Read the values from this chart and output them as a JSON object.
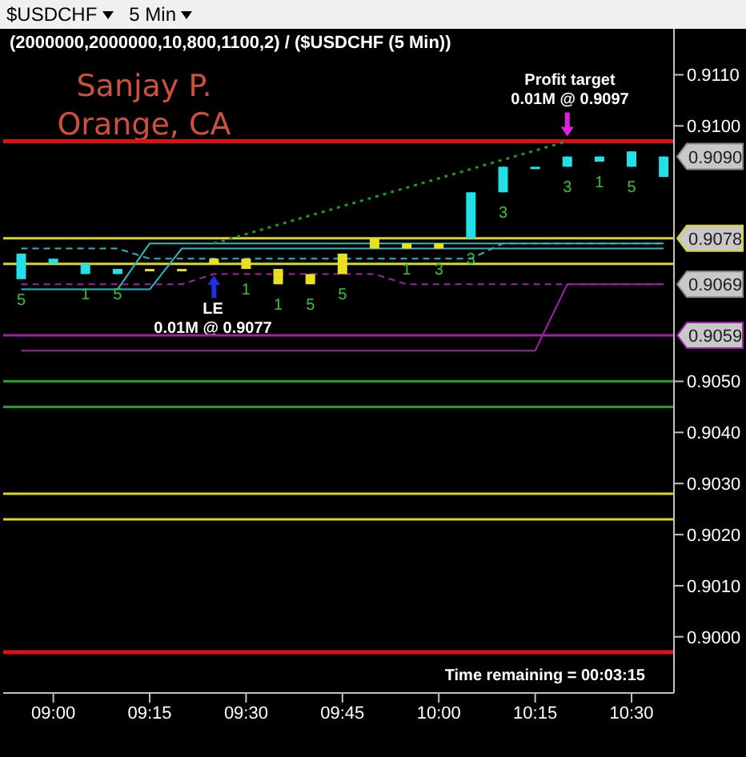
{
  "chart_data": {
    "type": "candlestick",
    "title": "(2000000,2000000,10,800,1100,2) / ($USDCHF (5 Min))",
    "x": [
      8.9167,
      9,
      9.0833,
      9.1667,
      9.25,
      9.3333,
      9.4167,
      9.5,
      9.5833,
      9.6667,
      9.75,
      9.8333,
      9.9167,
      10,
      10.0833,
      10.1667,
      10.25,
      10.3333,
      10.4167,
      10.5,
      10.5833
    ],
    "ohlc": [
      [
        0.907,
        0.9075,
        0.907,
        0.9075
      ],
      [
        0.9073,
        0.9074,
        0.9073,
        0.9074
      ],
      [
        0.9071,
        0.9073,
        0.9071,
        0.9073
      ],
      [
        0.9071,
        0.9072,
        0.9071,
        0.9072
      ],
      [
        0.9072,
        0.9072,
        0.9072,
        0.9072
      ],
      [
        0.9072,
        0.9072,
        0.9072,
        0.9072
      ],
      [
        0.9074,
        0.9074,
        0.9073,
        0.9073
      ],
      [
        0.9074,
        0.9074,
        0.9072,
        0.9072
      ],
      [
        0.9072,
        0.9072,
        0.9069,
        0.9069
      ],
      [
        0.9071,
        0.9071,
        0.9069,
        0.9069
      ],
      [
        0.9075,
        0.9075,
        0.9071,
        0.9071
      ],
      [
        0.9078,
        0.9078,
        0.9076,
        0.9076
      ],
      [
        0.9077,
        0.9077,
        0.9076,
        0.9076
      ],
      [
        0.9077,
        0.9077,
        0.9076,
        0.9076
      ],
      [
        0.9078,
        0.9087,
        0.9078,
        0.9087
      ],
      [
        0.9087,
        0.9092,
        0.9087,
        0.9092
      ],
      [
        0.9092,
        0.9092,
        0.9092,
        0.9092
      ],
      [
        0.9092,
        0.9094,
        0.9092,
        0.9094
      ],
      [
        0.9093,
        0.9094,
        0.9093,
        0.9094
      ],
      [
        0.9092,
        0.9095,
        0.9092,
        0.9095
      ],
      [
        0.909,
        0.9094,
        0.909,
        0.9094
      ]
    ],
    "colors": [
      "#22e0e8",
      "#22e0e8",
      "#22e0e8",
      "#22e0e8",
      "#e8e020",
      "#e8e020",
      "#e8e020",
      "#e8e020",
      "#e8e020",
      "#e8e020",
      "#e8e020",
      "#e8e020",
      "#e8e020",
      "#e8e020",
      "#22e0e8",
      "#22e0e8",
      "#22e0e8",
      "#22e0e8",
      "#22e0e8",
      "#22e0e8",
      "#22e0e8"
    ],
    "series": [
      {
        "type": "line",
        "color": "#2ab8c0",
        "line_style": "solid",
        "x": [
          8.9167,
          9.1667,
          9.25,
          10.5833
        ],
        "values": [
          0.9068,
          0.9068,
          0.9077,
          0.9077
        ]
      },
      {
        "type": "line",
        "color": "#2ab8c0",
        "line_style": "solid",
        "x": [
          9.1667,
          9.25,
          9.3333,
          10.5833
        ],
        "values": [
          0.9068,
          0.9068,
          0.9076,
          0.9076
        ]
      },
      {
        "type": "line",
        "color": "#2ab8c0",
        "line_style": "dashed",
        "x": [
          8.9167,
          9.1667,
          9.25,
          10.0833,
          10.1667,
          10.5833
        ],
        "values": [
          0.9076,
          0.9076,
          0.9074,
          0.9074,
          0.9077,
          0.9077
        ]
      },
      {
        "type": "line",
        "color": "#a020a8",
        "line_style": "dashed",
        "x": [
          8.9167,
          9.3333,
          9.4167,
          9.8333,
          9.9167,
          10.5833
        ],
        "values": [
          0.9069,
          0.9069,
          0.9071,
          0.9071,
          0.9069,
          0.9069
        ]
      },
      {
        "type": "line",
        "color": "#a020a8",
        "line_style": "solid",
        "x": [
          8.9167,
          10.25,
          10.3333,
          10.5833
        ],
        "values": [
          0.9056,
          0.9056,
          0.9069,
          0.9069
        ]
      },
      {
        "type": "line",
        "color": "#1e9a1e",
        "line_style": "dotted",
        "x": [
          9.4167,
          10.3333
        ],
        "values": [
          0.9077,
          0.9097
        ]
      }
    ],
    "ref_lines": [
      {
        "axis": "y",
        "value": 0.9097,
        "color": "#e01010"
      },
      {
        "axis": "y",
        "value": 0.9078,
        "color": "#d8d820",
        "label": "0.9078"
      },
      {
        "axis": "y",
        "value": 0.9073,
        "color": "#d8d820"
      },
      {
        "axis": "y",
        "value": 0.9059,
        "color": "#a020a8",
        "label": "0.9059"
      },
      {
        "axis": "y",
        "value": 0.905,
        "color": "#1ea01e"
      },
      {
        "axis": "y",
        "value": 0.9045,
        "color": "#1ea01e"
      },
      {
        "axis": "y",
        "value": 0.9028,
        "color": "#d8d820"
      },
      {
        "axis": "y",
        "value": 0.9023,
        "color": "#d8d820"
      },
      {
        "axis": "y",
        "value": 0.8997,
        "color": "#e01010"
      }
    ],
    "annotations": [
      "Sanjay P.",
      "Orange, CA",
      "Time remaining = 00:03:15",
      "Profit target",
      "0.01M @ 0.9097",
      "LE",
      "0.01M @ 0.9077",
      "$USDCHF",
      "5 Min",
      {
        "text": "0.9090",
        "x": 10.5833,
        "y": 0.9094
      },
      {
        "text": "0.9069",
        "x": 10.5833,
        "y": 0.9069
      },
      {
        "text": "5",
        "x": 8.9167,
        "y": 0.907
      },
      {
        "text": "1",
        "x": 9.0833,
        "y": 0.9071
      },
      {
        "text": "5",
        "x": 9.1667,
        "y": 0.9071
      },
      {
        "text": "1",
        "x": 9.5,
        "y": 0.9072
      },
      {
        "text": "1",
        "x": 9.5833,
        "y": 0.9069
      },
      {
        "text": "5",
        "x": 9.6667,
        "y": 0.9069
      },
      {
        "text": "5",
        "x": 9.75,
        "y": 0.9071
      },
      {
        "text": "1",
        "x": 9.9167,
        "y": 0.9076
      },
      {
        "text": "3",
        "x": 10,
        "y": 0.9076
      },
      {
        "text": "3",
        "x": 10.0833,
        "y": 0.9078
      },
      {
        "text": "3",
        "x": 10.1667,
        "y": 0.9087
      },
      {
        "text": "3",
        "x": 10.3333,
        "y": 0.9092
      },
      {
        "text": "1",
        "x": 10.4167,
        "y": 0.9093
      },
      {
        "text": "5",
        "x": 10.5,
        "y": 0.9092
      }
    ],
    "xlim": [
      8.87,
      10.61
    ],
    "xticks": [
      {
        "value": 9,
        "label": "09:00"
      },
      {
        "value": 9.25,
        "label": "09:15"
      },
      {
        "value": 9.5,
        "label": "09:30"
      },
      {
        "value": 9.75,
        "label": "09:45"
      },
      {
        "value": 10,
        "label": "10:00"
      },
      {
        "value": 10.25,
        "label": "10:15"
      },
      {
        "value": 10.5,
        "label": "10:30"
      }
    ],
    "ylim": [
      0.8989,
      0.9119
    ],
    "yticks": [
      {
        "value": 0.9,
        "label": "0.9000"
      },
      {
        "value": 0.901,
        "label": "0.9010"
      },
      {
        "value": 0.902,
        "label": "0.9020"
      },
      {
        "value": 0.903,
        "label": "0.9030"
      },
      {
        "value": 0.904,
        "label": "0.9040"
      },
      {
        "value": 0.905,
        "label": "0.9050"
      },
      {
        "value": 0.91,
        "label": "0.9100"
      },
      {
        "value": 0.911,
        "label": "0.9110"
      }
    ],
    "marker": "none"
  }
}
